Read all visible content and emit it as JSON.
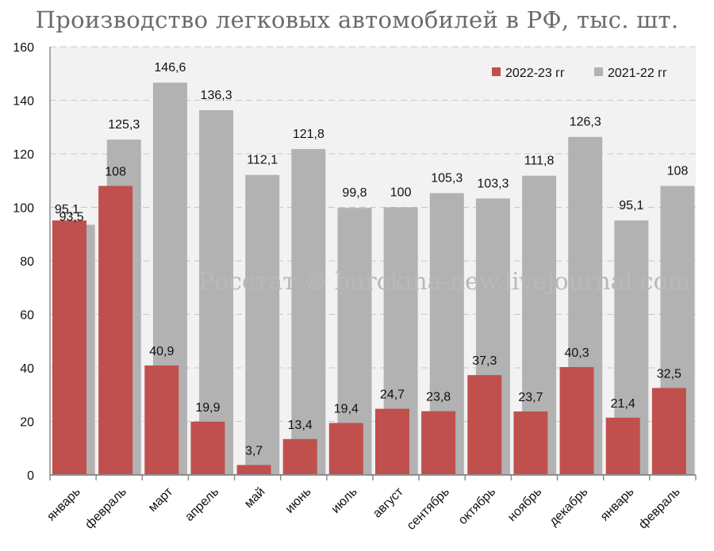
{
  "chart_data": {
    "type": "bar",
    "title": "Производство легковых автомобилей в РФ, тыс. шт.",
    "categories": [
      "январь",
      "февраль",
      "март",
      "апрель",
      "май",
      "июнь",
      "июль",
      "август",
      "сентябрь",
      "октябрь",
      "ноябрь",
      "декабрь",
      "январь",
      "февраль"
    ],
    "series": [
      {
        "name": "2021-22 гг",
        "color": "#b2b2b2",
        "values": [
          93.5,
          125.3,
          146.6,
          136.3,
          112.1,
          121.8,
          99.8,
          100,
          105.3,
          103.3,
          111.8,
          126.3,
          95.1,
          108
        ],
        "labels": [
          "93,5",
          "125,3",
          "146,6",
          "136,3",
          "112,1",
          "121,8",
          "99,8",
          "100",
          "105,3",
          "103,3",
          "111,8",
          "126,3",
          "95,1",
          "108"
        ]
      },
      {
        "name": "2022-23 гг",
        "color": "#c0504d",
        "values": [
          95.1,
          108,
          40.9,
          19.9,
          3.7,
          13.4,
          19.4,
          24.7,
          23.8,
          37.3,
          23.7,
          40.3,
          21.4,
          32.5
        ],
        "labels": [
          "95,1",
          "108",
          "40,9",
          "19,9",
          "3,7",
          "13,4",
          "19,4",
          "24,7",
          "23,8",
          "37,3",
          "23,7",
          "40,3",
          "21,4",
          "32,5"
        ]
      }
    ],
    "ylim": [
      0,
      160
    ],
    "yticks": [
      0,
      20,
      40,
      60,
      80,
      100,
      120,
      140,
      160
    ],
    "grid": true,
    "legend": {
      "position": "top-right",
      "order": [
        "2022-23 гг",
        "2021-22 гг"
      ]
    },
    "watermark": "Росстат © burckina-new.livejournal.com",
    "plot_background": "#f2f2f2"
  }
}
